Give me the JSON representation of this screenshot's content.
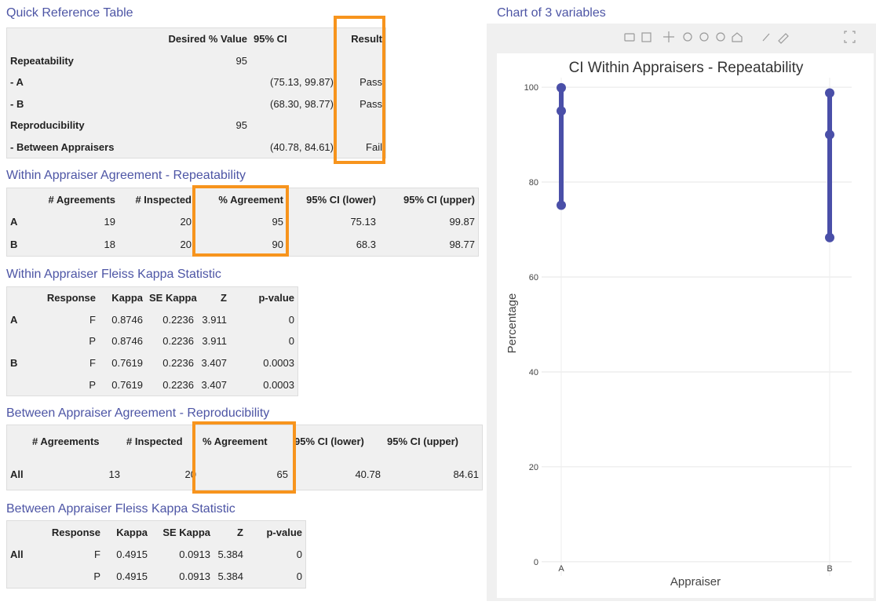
{
  "quick_reference": {
    "title": "Quick Reference Table",
    "columns": [
      null,
      "Desired % Value",
      "95% CI",
      "Result"
    ],
    "rows": [
      [
        "Repeatability",
        95,
        null,
        null
      ],
      [
        "- A",
        null,
        "(75.13, 99.87)",
        "Pass"
      ],
      [
        "- B",
        null,
        "(68.30, 98.77)",
        "Pass"
      ],
      [
        "Reproducibility",
        95,
        null,
        null
      ],
      [
        "- Between Appraisers",
        null,
        "(40.78, 84.61)",
        "Fail"
      ]
    ]
  },
  "within_agreement": {
    "title": "Within Appraiser Agreement - Repeatability",
    "columns": [
      null,
      "# Agreements",
      "# Inspected",
      "% Agreement",
      "95% CI (lower)",
      "95% CI (upper)"
    ],
    "rows": [
      [
        "A",
        19,
        20,
        95,
        75.13,
        99.87
      ],
      [
        "B",
        18,
        20,
        90,
        68.3,
        98.77
      ]
    ]
  },
  "within_kappa": {
    "title": "Within Appraiser Fleiss Kappa Statistic",
    "columns": [
      null,
      "Response",
      "Kappa",
      "SE Kappa",
      "Z",
      "p-value"
    ],
    "rows": [
      [
        "A",
        "F",
        0.8746,
        0.2236,
        3.911,
        0
      ],
      [
        null,
        "P",
        0.8746,
        0.2236,
        3.911,
        0
      ],
      [
        "B",
        "F",
        0.7619,
        0.2236,
        3.407,
        0.0003
      ],
      [
        null,
        "P",
        0.7619,
        0.2236,
        3.407,
        0.0003
      ]
    ]
  },
  "between_agreement": {
    "title": "Between Appraiser Agreement - Reproducibility",
    "columns": [
      null,
      "# Agreements",
      "# Inspected",
      "% Agreement",
      "95% CI (lower)",
      "95% CI (upper)"
    ],
    "rows": [
      [
        "All",
        13,
        20,
        65,
        40.78,
        84.61
      ]
    ]
  },
  "between_kappa": {
    "title": "Between Appraiser Fleiss Kappa Statistic",
    "columns": [
      null,
      "Response",
      "Kappa",
      "SE Kappa",
      "Z",
      "p-value"
    ],
    "rows": [
      [
        "All",
        "F",
        0.4915,
        0.0913,
        5.384,
        0
      ],
      [
        null,
        "P",
        0.4915,
        0.0913,
        5.384,
        0
      ]
    ]
  },
  "chart_panel": {
    "title": "Chart of 3 variables"
  },
  "chart_data": {
    "type": "interval",
    "title": "CI Within Appraisers - Repeatability",
    "x_label": "Appraiser",
    "y_label": "Percentage",
    "categories": [
      "A",
      "B"
    ],
    "lower": [
      75.13,
      68.3
    ],
    "values": [
      95,
      90
    ],
    "upper": [
      99.87,
      98.77
    ],
    "color": "#4a4fa8",
    "ylim": [
      -3,
      102
    ],
    "yticks": [
      0,
      20,
      40,
      60,
      80,
      100
    ],
    "grid": true
  }
}
